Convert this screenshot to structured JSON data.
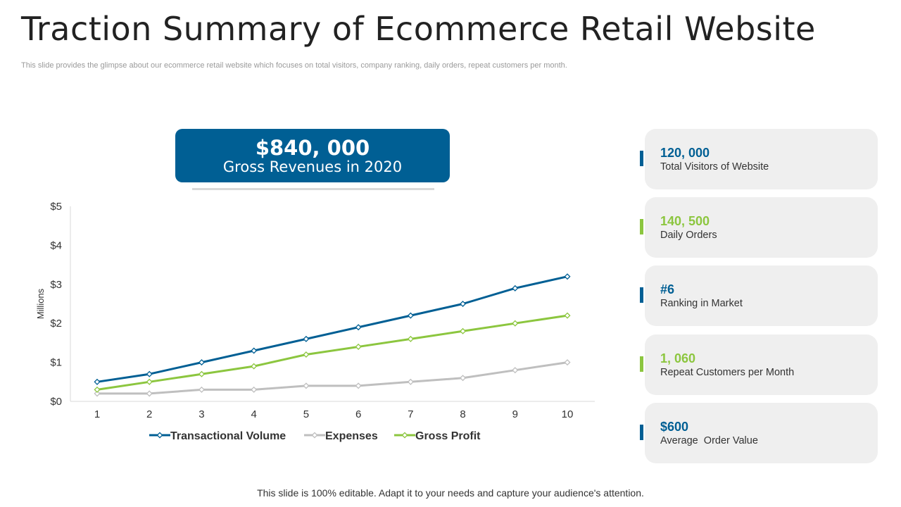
{
  "slide": {
    "title": "Traction Summary of Ecommerce Retail Website",
    "subtitle": "This slide provides the glimpse about our ecommerce retail website which focuses on total visitors, company ranking, daily orders, repeat customers per month.",
    "footer": "This slide is 100% editable.  Adapt it to your needs and capture your audience's attention."
  },
  "revenue": {
    "value": "$840, 000",
    "label": "Gross Revenues in 2020"
  },
  "kpis": [
    {
      "value": "120, 000",
      "label": "Total Visitors of Website",
      "color": "#005f94"
    },
    {
      "value": "140, 500",
      "label": "Daily Orders",
      "color": "#8cc63f"
    },
    {
      "value": "#6",
      "label": "Ranking in Market",
      "color": "#005f94"
    },
    {
      "value": "1, 060",
      "label": "Repeat Customers per Month",
      "color": "#8cc63f"
    },
    {
      "value": "$600",
      "label": "Average  Order Value",
      "color": "#005f94"
    }
  ],
  "chart_data": {
    "type": "line",
    "x": [
      1,
      2,
      3,
      4,
      5,
      6,
      7,
      8,
      9,
      10
    ],
    "ylabel": "Millions",
    "ylim": [
      0,
      5
    ],
    "yticks": [
      "$0",
      "$1",
      "$2",
      "$3",
      "$4",
      "$5"
    ],
    "series": [
      {
        "name": "Transactional Volume",
        "color": "#005f94",
        "values": [
          0.5,
          0.7,
          1.0,
          1.3,
          1.6,
          1.9,
          2.2,
          2.5,
          2.9,
          3.2
        ]
      },
      {
        "name": "Expenses",
        "color": "#bfbfbf",
        "values": [
          0.2,
          0.2,
          0.3,
          0.3,
          0.4,
          0.4,
          0.5,
          0.6,
          0.8,
          1.0
        ]
      },
      {
        "name": "Gross Profit",
        "color": "#8cc63f",
        "values": [
          0.3,
          0.5,
          0.7,
          0.9,
          1.2,
          1.4,
          1.6,
          1.8,
          2.0,
          2.2
        ]
      }
    ]
  }
}
